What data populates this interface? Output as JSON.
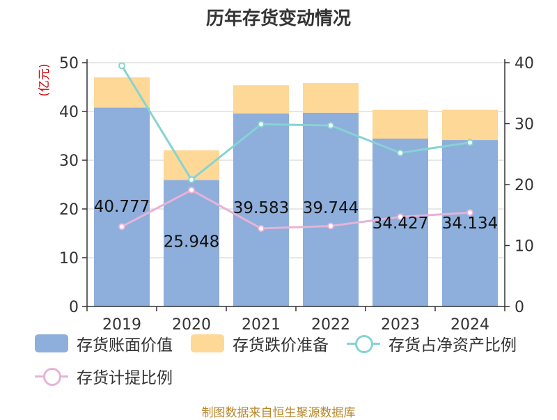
{
  "title": "历年存货变动情况",
  "source": "制图数据来自恒生聚源数据库",
  "chart_data": {
    "type": "bar",
    "categories": [
      "2019",
      "2020",
      "2021",
      "2022",
      "2023",
      "2024"
    ],
    "left_axis": {
      "label": "(亿元)",
      "min": 0,
      "max": 50,
      "ticks": [
        0,
        10,
        20,
        30,
        40,
        50
      ]
    },
    "right_axis": {
      "min": 0,
      "max": 40,
      "ticks": [
        0,
        10,
        20,
        30,
        40
      ]
    },
    "series": [
      {
        "name": "存货账面价值",
        "kind": "bar",
        "axis": "left",
        "color": "#8eaedb",
        "values": [
          40.777,
          25.948,
          39.583,
          39.744,
          34.427,
          34.134
        ],
        "labels": [
          "40.777",
          "25.948",
          "39.583",
          "39.744",
          "34.427",
          "34.134"
        ]
      },
      {
        "name": "存货跌价准备",
        "kind": "bar-stack",
        "axis": "left",
        "color": "#fdd896",
        "values": [
          6.2,
          6.1,
          5.8,
          6.1,
          5.9,
          6.2
        ]
      },
      {
        "name": "存货占净资产比例",
        "kind": "line",
        "axis": "right",
        "color": "#86d3d3",
        "values": [
          39.5,
          20.8,
          29.9,
          29.7,
          25.2,
          26.9
        ]
      },
      {
        "name": "存货计提比例",
        "kind": "line",
        "axis": "right",
        "color": "#e6b3d8",
        "values": [
          13.1,
          19.1,
          12.8,
          13.2,
          14.7,
          15.4
        ]
      }
    ],
    "grid": true,
    "legend_position": "bottom"
  }
}
